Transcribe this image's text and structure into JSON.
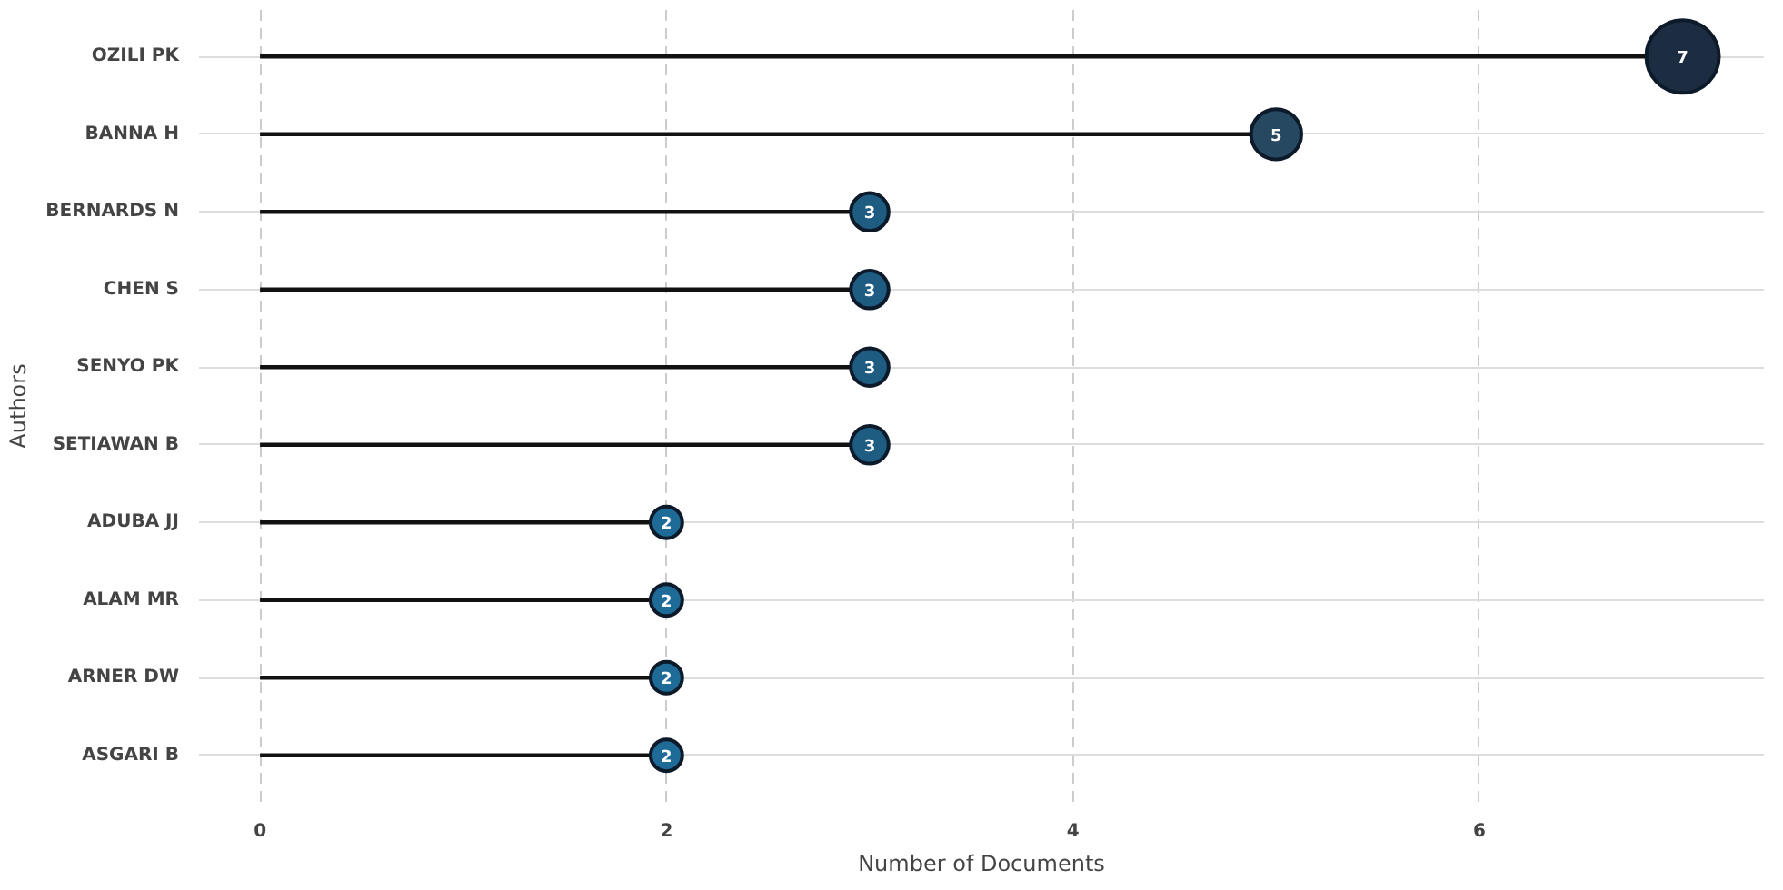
{
  "chart_data": {
    "type": "lollipop",
    "orientation": "horizontal",
    "xlabel": "Number of Documents",
    "ylabel": "Authors",
    "categories": [
      "OZILI PK",
      "BANNA H",
      "BERNARDS N",
      "CHEN S",
      "SENYO PK",
      "SETIAWAN B",
      "ADUBA JJ",
      "ALAM MR",
      "ARNER DW",
      "ASGARI B"
    ],
    "values": [
      7,
      5,
      3,
      3,
      3,
      3,
      2,
      2,
      2,
      2
    ],
    "colors": [
      "#1c2d42",
      "#264860",
      "#1e5c82",
      "#1e5c82",
      "#1e5c82",
      "#1e5c82",
      "#1d6b96",
      "#1d6b96",
      "#1d6b96",
      "#1d6b96"
    ],
    "sizes": [
      1,
      0.48,
      0.27,
      0.27,
      0.27,
      0.27,
      0.19,
      0.19,
      0.19,
      0.19
    ],
    "xlim": [
      -0.3,
      7.4
    ],
    "xticks": [
      0,
      2,
      4,
      6
    ],
    "grid": true,
    "data_labels": true,
    "marker": "circle"
  }
}
